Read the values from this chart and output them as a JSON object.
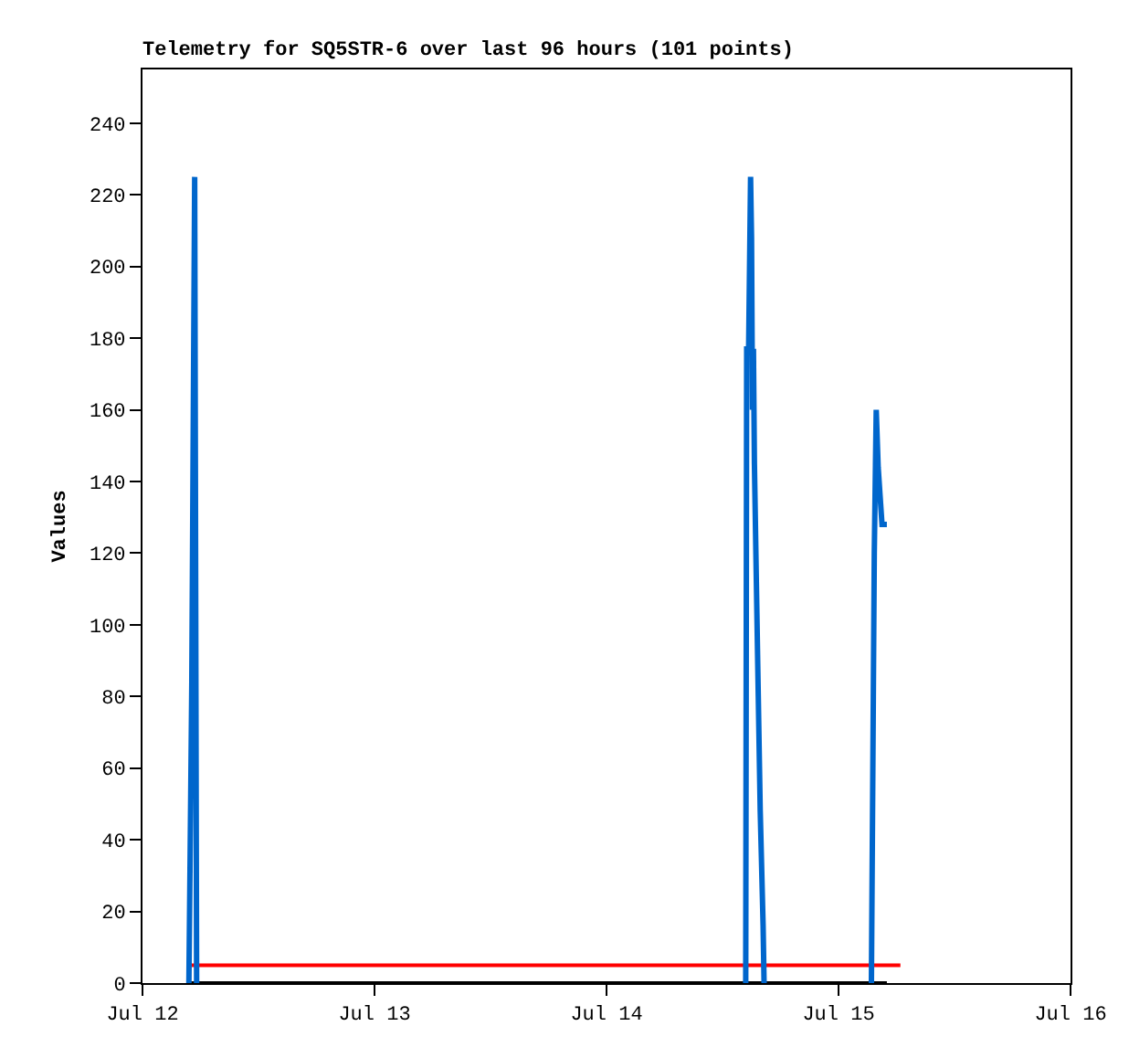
{
  "chart_data": {
    "type": "line",
    "title": "Telemetry for SQ5STR-6 over last 96 hours (101 points)",
    "ylabel": "Values",
    "xlim": [
      "--07-12",
      "--07-16"
    ],
    "xticks": [
      {
        "value": "--07-12",
        "label": "Jul 12"
      },
      {
        "value": "--07-13",
        "label": "Jul 13"
      },
      {
        "value": "--07-14",
        "label": "Jul 14"
      },
      {
        "value": "--07-15",
        "label": "Jul 15"
      },
      {
        "value": "--07-16",
        "label": "Jul 16"
      }
    ],
    "ylim": [
      0,
      255
    ],
    "yticks": [
      0,
      20,
      40,
      60,
      80,
      100,
      120,
      140,
      160,
      180,
      200,
      220,
      240
    ],
    "grid": false,
    "marker": "none",
    "line_style": "solid",
    "series": [
      {
        "color": "#000000",
        "x": [
          "--07-12T04:48",
          "--07-15T05:00"
        ],
        "values": [
          0,
          0
        ]
      },
      {
        "color": "#ff0000",
        "x": [
          "--07-12T05:06",
          "--07-15T06:24"
        ],
        "values": [
          5,
          5
        ]
      },
      {
        "color": "#0066cc",
        "x": [
          "--07-12T04:48",
          "--07-12T04:54",
          "--07-12T05:06",
          "--07-12T05:24",
          "--07-12T05:36",
          "--07-13T12:00",
          "--07-14T14:24",
          "--07-14T14:30",
          "--07-14T14:42",
          "--07-14T14:54",
          "--07-14T15:00",
          "--07-14T15:06",
          "--07-14T15:12",
          "--07-14T15:18",
          "--07-14T15:30",
          "--07-14T15:42",
          "--07-14T15:54",
          "--07-14T16:12",
          "--07-14T16:18",
          "--07-14T22:00",
          "--07-15T03:24",
          "--07-15T03:30",
          "--07-15T03:42",
          "--07-15T03:54",
          "--07-15T04:06",
          "--07-15T04:18",
          "--07-15T04:30",
          "--07-15T05:00"
        ],
        "values": [
          0,
          28,
          84,
          225,
          0,
          null,
          0,
          177,
          177,
          225,
          208,
          160,
          177,
          145,
          112,
          80,
          48,
          16,
          0,
          null,
          0,
          40,
          120,
          160,
          144,
          136,
          128,
          128
        ]
      }
    ]
  }
}
